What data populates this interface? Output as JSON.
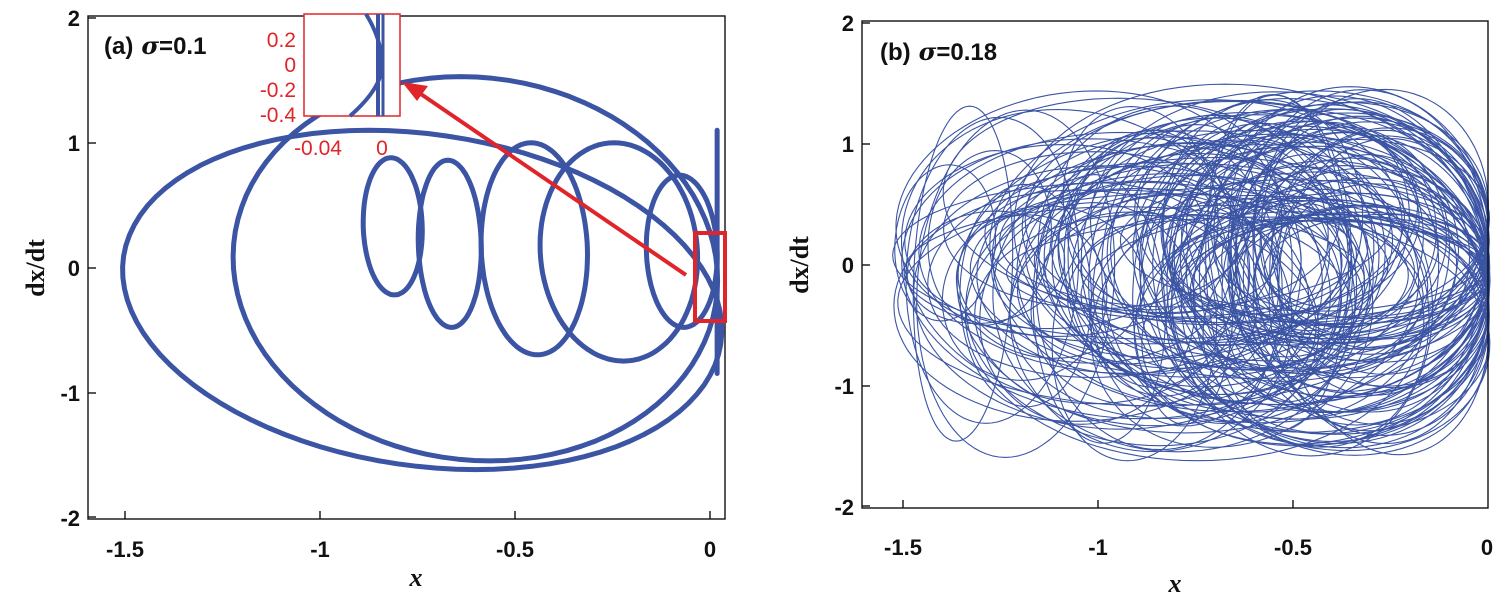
{
  "colors": {
    "trajectory": "#3b54a4",
    "highlight": "#e0252a",
    "axis": "#111111"
  },
  "chart_data": [
    {
      "type": "line",
      "panel": "(a)",
      "title": "(a) σ=0.1",
      "title_parts": {
        "label": "(a)",
        "symbol": "σ",
        "value": "=0.1"
      },
      "xlabel": "x",
      "ylabel": "dx/dt",
      "xlim": [
        -1.6,
        0.02
      ],
      "ylim": [
        -2,
        2
      ],
      "xticks": [
        "-1.5",
        "-1",
        "-0.5",
        "0"
      ],
      "yticks": [
        "-2",
        "-1",
        "0",
        "1",
        "2"
      ],
      "grid": false,
      "description_series": "phase-plane trajectory (periodic, multi-loop orbit)",
      "orbit_loops": [
        {
          "x_min": -1.5,
          "x_max": 0.0,
          "y_min": -1.62,
          "y_max": 1.1
        },
        {
          "x_min": -1.23,
          "x_max": 0.0,
          "y_min": -1.55,
          "y_max": 1.53
        },
        {
          "x_min": -0.9,
          "x_max": -0.75,
          "y_min": -0.22,
          "y_max": 0.88
        },
        {
          "x_min": -0.76,
          "x_max": -0.6,
          "y_min": -0.48,
          "y_max": 0.86
        },
        {
          "x_min": -0.6,
          "x_max": -0.33,
          "y_min": -0.7,
          "y_max": 1.0
        },
        {
          "x_min": -0.45,
          "x_max": -0.05,
          "y_min": -0.75,
          "y_max": 1.0
        },
        {
          "x_min": -0.18,
          "x_max": 0.0,
          "y_min": -0.48,
          "y_max": 0.74
        }
      ],
      "zoom_box": {
        "x": [
          -0.005,
          0.035
        ],
        "y": [
          -0.45,
          0.28
        ]
      },
      "arrow": {
        "from": [
          -0.06,
          -0.07
        ],
        "to": [
          -0.83,
          1.5
        ]
      },
      "inset": {
        "xlim": [
          -0.055,
          0.012
        ],
        "ylim": [
          -0.4,
          0.4
        ],
        "xticks": [
          "-0.04",
          "0"
        ],
        "yticks": [
          "0.2",
          "0",
          "-0.2",
          "-0.4"
        ]
      }
    },
    {
      "type": "line",
      "panel": "(b)",
      "title": "(b) σ=0.18",
      "title_parts": {
        "label": "(b)",
        "symbol": "σ",
        "value": "=0.18"
      },
      "xlabel": "x",
      "ylabel": "dx/dt",
      "xlim": [
        -1.6,
        0.0
      ],
      "ylim": [
        -2,
        2
      ],
      "xticks": [
        "-1.5",
        "-1",
        "-0.5",
        "0"
      ],
      "yticks": [
        "-2",
        "-1",
        "0",
        "1",
        "2"
      ],
      "grid": false,
      "description_series": "phase-plane trajectory (chaotic, dense band of loops)",
      "band_extent": {
        "x_min": -1.52,
        "x_max": 0.0,
        "y_min": -1.63,
        "y_max": 1.5
      }
    }
  ]
}
